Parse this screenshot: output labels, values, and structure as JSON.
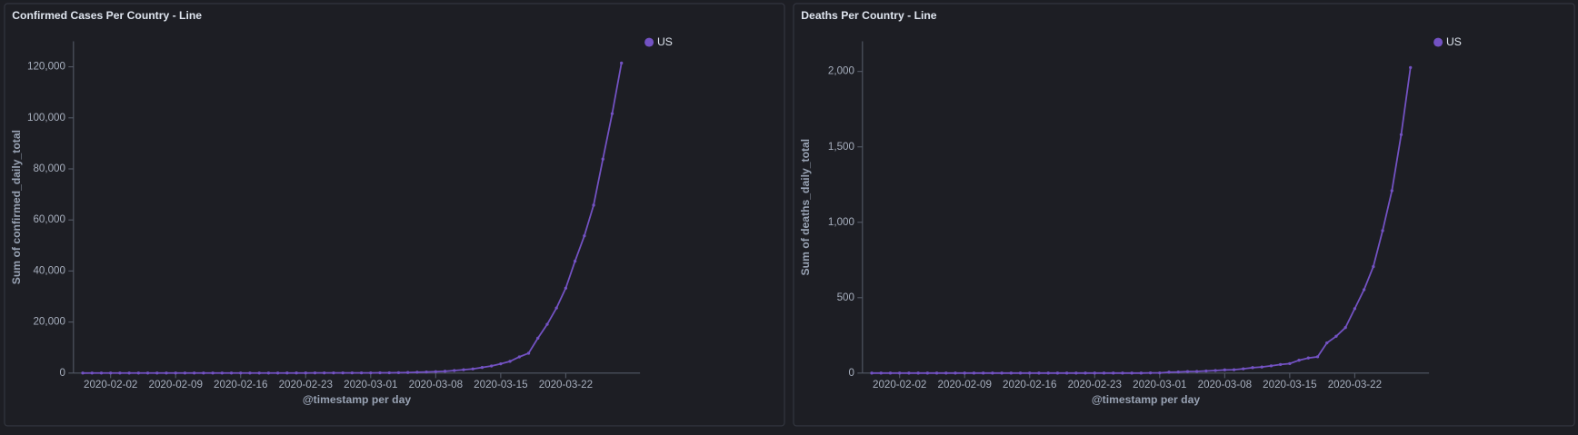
{
  "chart_data": [
    {
      "type": "line",
      "title": "Confirmed Cases Per Country - Line",
      "x_label": "@timestamp per day",
      "y_label": "Sum of confirmed_daily_total",
      "x": [
        "2020-01-30",
        "2020-01-31",
        "2020-02-01",
        "2020-02-02",
        "2020-02-03",
        "2020-02-04",
        "2020-02-05",
        "2020-02-06",
        "2020-02-07",
        "2020-02-08",
        "2020-02-09",
        "2020-02-10",
        "2020-02-11",
        "2020-02-12",
        "2020-02-13",
        "2020-02-14",
        "2020-02-15",
        "2020-02-16",
        "2020-02-17",
        "2020-02-18",
        "2020-02-19",
        "2020-02-20",
        "2020-02-21",
        "2020-02-22",
        "2020-02-23",
        "2020-02-24",
        "2020-02-25",
        "2020-02-26",
        "2020-02-27",
        "2020-02-28",
        "2020-02-29",
        "2020-03-01",
        "2020-03-02",
        "2020-03-03",
        "2020-03-04",
        "2020-03-05",
        "2020-03-06",
        "2020-03-07",
        "2020-03-08",
        "2020-03-09",
        "2020-03-10",
        "2020-03-11",
        "2020-03-12",
        "2020-03-13",
        "2020-03-14",
        "2020-03-15",
        "2020-03-16",
        "2020-03-17",
        "2020-03-18",
        "2020-03-19",
        "2020-03-20",
        "2020-03-21",
        "2020-03-22",
        "2020-03-23",
        "2020-03-24",
        "2020-03-25",
        "2020-03-26",
        "2020-03-27",
        "2020-03-28"
      ],
      "series": [
        {
          "name": "US",
          "color": "#7352c3",
          "values": [
            5,
            7,
            8,
            8,
            11,
            11,
            12,
            12,
            12,
            12,
            12,
            12,
            13,
            13,
            14,
            15,
            15,
            15,
            15,
            15,
            15,
            15,
            35,
            35,
            35,
            53,
            53,
            59,
            60,
            62,
            70,
            76,
            101,
            122,
            153,
            221,
            319,
            435,
            541,
            704,
            994,
            1301,
            1630,
            2183,
            2770,
            3613,
            4596,
            6344,
            7786,
            13677,
            19100,
            25489,
            33276,
            43847,
            53740,
            65778,
            83836,
            101657,
            121465
          ]
        }
      ],
      "xlim": [
        "2020-01-29",
        "2020-03-30"
      ],
      "xticks": [
        "2020-02-02",
        "2020-02-09",
        "2020-02-16",
        "2020-02-23",
        "2020-03-01",
        "2020-03-08",
        "2020-03-15",
        "2020-03-22"
      ],
      "ylim": [
        0,
        130000
      ],
      "yticks": [
        0,
        {
          "value": 20000,
          "label": "20,000"
        },
        {
          "value": 40000,
          "label": "40,000"
        },
        {
          "value": 60000,
          "label": "60,000"
        },
        {
          "value": 80000,
          "label": "80,000"
        },
        {
          "value": 100000,
          "label": "100,000"
        },
        {
          "value": 120000,
          "label": "120,000"
        }
      ],
      "legend": "top-right"
    },
    {
      "type": "line",
      "title": "Deaths Per Country - Line",
      "x_label": "@timestamp per day",
      "y_label": "Sum of deaths_daily_total",
      "x": [
        "2020-01-30",
        "2020-01-31",
        "2020-02-01",
        "2020-02-02",
        "2020-02-03",
        "2020-02-04",
        "2020-02-05",
        "2020-02-06",
        "2020-02-07",
        "2020-02-08",
        "2020-02-09",
        "2020-02-10",
        "2020-02-11",
        "2020-02-12",
        "2020-02-13",
        "2020-02-14",
        "2020-02-15",
        "2020-02-16",
        "2020-02-17",
        "2020-02-18",
        "2020-02-19",
        "2020-02-20",
        "2020-02-21",
        "2020-02-22",
        "2020-02-23",
        "2020-02-24",
        "2020-02-25",
        "2020-02-26",
        "2020-02-27",
        "2020-02-28",
        "2020-02-29",
        "2020-03-01",
        "2020-03-02",
        "2020-03-03",
        "2020-03-04",
        "2020-03-05",
        "2020-03-06",
        "2020-03-07",
        "2020-03-08",
        "2020-03-09",
        "2020-03-10",
        "2020-03-11",
        "2020-03-12",
        "2020-03-13",
        "2020-03-14",
        "2020-03-15",
        "2020-03-16",
        "2020-03-17",
        "2020-03-18",
        "2020-03-19",
        "2020-03-20",
        "2020-03-21",
        "2020-03-22",
        "2020-03-23",
        "2020-03-24",
        "2020-03-25",
        "2020-03-26",
        "2020-03-27",
        "2020-03-28"
      ],
      "series": [
        {
          "name": "US",
          "color": "#7352c3",
          "values": [
            0,
            0,
            0,
            0,
            0,
            0,
            0,
            0,
            0,
            0,
            0,
            0,
            0,
            0,
            0,
            0,
            0,
            0,
            0,
            0,
            0,
            0,
            0,
            0,
            0,
            0,
            0,
            0,
            0,
            0,
            1,
            1,
            6,
            7,
            10,
            11,
            14,
            17,
            21,
            22,
            28,
            36,
            40,
            48,
            57,
            63,
            85,
            100,
            108,
            200,
            244,
            302,
            427,
            553,
            706,
            944,
            1209,
            1581,
            2026
          ]
        }
      ],
      "xlim": [
        "2020-01-29",
        "2020-03-30"
      ],
      "xticks": [
        "2020-02-02",
        "2020-02-09",
        "2020-02-16",
        "2020-02-23",
        "2020-03-01",
        "2020-03-08",
        "2020-03-15",
        "2020-03-22"
      ],
      "ylim": [
        0,
        2200
      ],
      "yticks": [
        0,
        500,
        {
          "value": 1000,
          "label": "1,000"
        },
        {
          "value": 1500,
          "label": "1,500"
        },
        {
          "value": 2000,
          "label": "2,000"
        }
      ],
      "legend": "top-right"
    }
  ]
}
